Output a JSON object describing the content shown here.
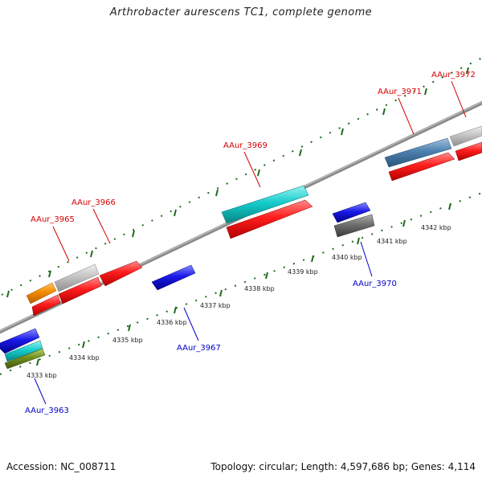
{
  "title": "Arthrobacter aurescens TC1, complete genome",
  "footer": {
    "accession": "Accession: NC_008711",
    "summary": "Topology: circular; Length: 4,597,686 bp; Genes: 4,114"
  },
  "colors": {
    "forward_label": "#d40000",
    "reverse_label": "#0000c8",
    "backbone": "#8a8a8a",
    "tick": "#1d6b1d"
  },
  "ticks": [
    "4333 kbp",
    "4334 kbp",
    "4335 kbp",
    "4336 kbp",
    "4337 kbp",
    "4338 kbp",
    "4339 kbp",
    "4340 kbp",
    "4341 kbp",
    "4342 kbp"
  ],
  "genes": {
    "forward": [
      "AAur_3965",
      "AAur_3966",
      "AAur_3969",
      "AAur_3971",
      "AAur_3972"
    ],
    "reverse": [
      "AAur_3963",
      "AAur_3967",
      "AAur_3970"
    ]
  },
  "features": [
    {
      "name": "orange-feature",
      "color": "#f08c00"
    },
    {
      "name": "light-gray-feature",
      "color": "#bdbdbd"
    },
    {
      "name": "red-cds",
      "color": "#e41a1a"
    },
    {
      "name": "cyan-feature",
      "color": "#19c5c5"
    },
    {
      "name": "steel-blue-feature",
      "color": "#4a7fae"
    },
    {
      "name": "blue-cds",
      "color": "#1414d8"
    },
    {
      "name": "dark-gray-feature",
      "color": "#6f6f6f"
    },
    {
      "name": "olive-feature",
      "color": "#6b8a1e"
    }
  ]
}
